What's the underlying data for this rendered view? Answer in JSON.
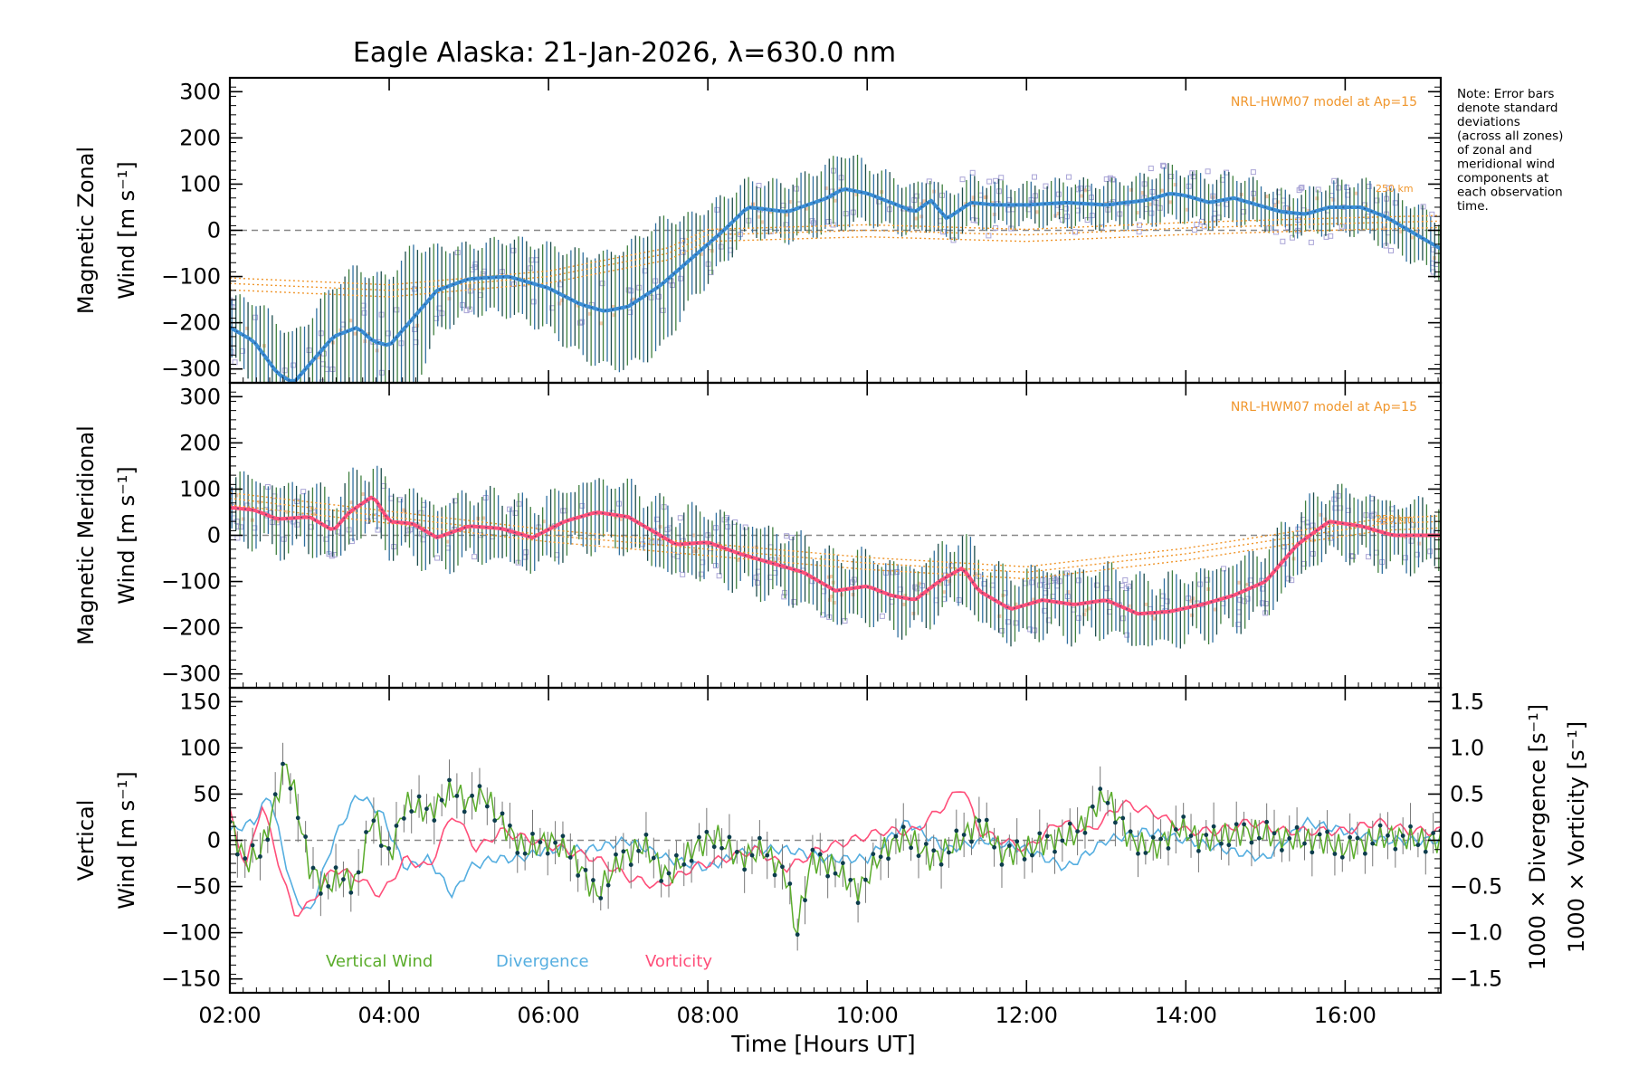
{
  "title": "Eagle Alaska: 21-Jan-2026, λ=630.0 nm",
  "xlabel": "Time [Hours UT]",
  "note": [
    "Note: Error bars",
    "denote standard",
    "deviations",
    "(across all zones)",
    "of zonal and",
    "meridional wind",
    "components at",
    "each observation",
    "time."
  ],
  "model_label": "NRL-HWM07 model at Ap=15",
  "model_altitude_label": "250 km",
  "colors": {
    "zonal": "#3b8ed6",
    "meridional": "#ff4f7a",
    "vertical": "#5aac2b",
    "divergence": "#55aee0",
    "vorticity": "#ff4f7a",
    "model": "#f0962c",
    "scatter": "#a9a4d6",
    "errorbar": "#1a3a3a"
  },
  "chart_data": [
    {
      "type": "line",
      "panel": "zonal",
      "ylabel_line1": "Magnetic Zonal",
      "ylabel_line2": "Wind [m s",
      "ylabel_sup": "-1",
      "ylabel_end": "]",
      "xlim": [
        2.0,
        17.2
      ],
      "ylim": [
        -330,
        330
      ],
      "yticks": [
        -300,
        -200,
        -100,
        0,
        100,
        200,
        300
      ],
      "xticks": [
        2,
        4,
        6,
        8,
        10,
        12,
        14,
        16
      ],
      "xticklabels": [
        "02:00",
        "04:00",
        "06:00",
        "08:00",
        "10:00",
        "12:00",
        "14:00",
        "16:00"
      ],
      "series": [
        {
          "name": "Zonal wind",
          "x": [
            2.0,
            2.3,
            2.6,
            2.8,
            3.0,
            3.3,
            3.6,
            3.8,
            4.0,
            4.3,
            4.6,
            5.0,
            5.5,
            6.0,
            6.4,
            6.7,
            7.0,
            7.4,
            7.8,
            8.2,
            8.5,
            9.0,
            9.5,
            9.7,
            10.0,
            10.3,
            10.6,
            10.8,
            11.0,
            11.3,
            11.6,
            12.0,
            12.5,
            13.0,
            13.5,
            13.8,
            14.0,
            14.3,
            14.6,
            14.9,
            15.2,
            15.5,
            15.8,
            16.2,
            16.5,
            16.8,
            17.2
          ],
          "y": [
            -210,
            -240,
            -310,
            -330,
            -290,
            -230,
            -210,
            -240,
            -250,
            -190,
            -130,
            -105,
            -100,
            -125,
            -160,
            -175,
            -165,
            -120,
            -60,
            0,
            50,
            40,
            70,
            90,
            80,
            60,
            40,
            65,
            25,
            60,
            55,
            55,
            60,
            55,
            65,
            80,
            75,
            60,
            70,
            55,
            40,
            35,
            50,
            50,
            30,
            0,
            -40
          ],
          "error": [
            60,
            90,
            110,
            100,
            100,
            110,
            130,
            140,
            150,
            155,
            90,
            70,
            80,
            90,
            110,
            120,
            130,
            140,
            90,
            70,
            55,
            60,
            70,
            80,
            60,
            55,
            50,
            55,
            50,
            50,
            45,
            40,
            45,
            45,
            50,
            55,
            50,
            50,
            50,
            45,
            40,
            45,
            50,
            55,
            60,
            60,
            60
          ]
        },
        {
          "name": "NRL-HWM07 model",
          "x": [
            2.0,
            4.0,
            6.0,
            7.5,
            8.0,
            10.0,
            12.0,
            14.0,
            16.0,
            17.2
          ],
          "y": [
            -115,
            -130,
            -100,
            -50,
            -10,
            0,
            -10,
            5,
            15,
            20
          ]
        }
      ]
    },
    {
      "type": "line",
      "panel": "meridional",
      "ylabel_line1": "Magnetic Meridional",
      "ylabel_line2": "Wind [m s",
      "ylabel_sup": "-1",
      "ylabel_end": "]",
      "xlim": [
        2.0,
        17.2
      ],
      "ylim": [
        -330,
        330
      ],
      "yticks": [
        -300,
        -200,
        -100,
        0,
        100,
        200,
        300
      ],
      "series": [
        {
          "name": "Meridional wind",
          "x": [
            2.0,
            2.3,
            2.6,
            3.0,
            3.3,
            3.5,
            3.8,
            4.0,
            4.3,
            4.6,
            5.0,
            5.4,
            5.8,
            6.2,
            6.6,
            7.0,
            7.3,
            7.6,
            8.0,
            8.4,
            8.8,
            9.2,
            9.6,
            10.0,
            10.3,
            10.6,
            10.9,
            11.2,
            11.4,
            11.8,
            12.2,
            12.6,
            13.0,
            13.4,
            13.8,
            14.2,
            14.6,
            15.0,
            15.4,
            15.8,
            16.2,
            16.6,
            17.2
          ],
          "y": [
            60,
            55,
            35,
            40,
            10,
            50,
            85,
            30,
            25,
            -5,
            20,
            15,
            -5,
            30,
            50,
            40,
            10,
            -20,
            -15,
            -40,
            -60,
            -80,
            -120,
            -110,
            -130,
            -140,
            -100,
            -70,
            -120,
            -160,
            -140,
            -150,
            -140,
            -170,
            -165,
            -150,
            -130,
            -100,
            -20,
            30,
            20,
            0,
            0
          ]
        },
        {
          "name": "NRL-HWM07 model",
          "x": [
            2.0,
            4.0,
            6.0,
            8.0,
            10.0,
            12.0,
            14.0,
            15.5,
            16.5,
            17.2
          ],
          "y": [
            80,
            40,
            0,
            -30,
            -60,
            -80,
            -40,
            0,
            25,
            30
          ]
        }
      ]
    },
    {
      "type": "line",
      "panel": "vertical",
      "ylabel_line1": "Vertical",
      "ylabel_line2": "Wind [m s",
      "ylabel_sup": "-1",
      "ylabel_end": "]",
      "y2label": "1000 × Divergence [s",
      "y3label": "1000 × Vorticity [s",
      "xlim": [
        2.0,
        17.2
      ],
      "ylim": [
        -165,
        165
      ],
      "yticks": [
        -150,
        -100,
        -50,
        0,
        50,
        100,
        150
      ],
      "y2lim": [
        -1.65,
        1.65
      ],
      "y2ticks": [
        -1.5,
        -1.0,
        -0.5,
        0.0,
        0.5,
        1.0,
        1.5
      ],
      "y2ticklabels": [
        "−1.5",
        "−1.0",
        "−0.5",
        "0.0",
        "0.5",
        "1.0",
        "1.5"
      ],
      "legend": [
        "Vertical Wind",
        "Divergence",
        "Vorticity"
      ],
      "series": [
        {
          "name": "Vertical Wind",
          "x": [
            2.0,
            2.2,
            2.4,
            2.6,
            2.7,
            2.8,
            3.0,
            3.2,
            3.4,
            3.6,
            3.8,
            4.0,
            4.2,
            4.5,
            4.8,
            5.0,
            5.2,
            5.4,
            5.7,
            6.0,
            6.3,
            6.6,
            6.9,
            7.2,
            7.5,
            7.8,
            8.1,
            8.4,
            8.7,
            9.0,
            9.1,
            9.3,
            9.6,
            9.9,
            10.2,
            10.5,
            10.8,
            11.1,
            11.4,
            11.7,
            12.0,
            12.3,
            12.6,
            12.8,
            13.0,
            13.3,
            13.6,
            13.9,
            14.2,
            14.5,
            14.8,
            15.1,
            15.4,
            15.7,
            16.0,
            16.3,
            16.6,
            16.9,
            17.2
          ],
          "y": [
            20,
            -25,
            -10,
            50,
            85,
            55,
            -30,
            -50,
            -40,
            -45,
            30,
            -20,
            40,
            30,
            55,
            40,
            50,
            20,
            -10,
            0,
            -15,
            -60,
            -20,
            -5,
            -40,
            -10,
            5,
            -20,
            -10,
            -40,
            -105,
            -20,
            -30,
            -55,
            -10,
            5,
            -20,
            -5,
            20,
            -15,
            -10,
            0,
            5,
            30,
            50,
            0,
            -10,
            15,
            0,
            5,
            10,
            5,
            0,
            0,
            -10,
            0,
            5,
            0,
            0
          ]
        },
        {
          "name": "Divergence",
          "x": [
            2.0,
            2.3,
            2.5,
            2.8,
            3.0,
            3.3,
            3.6,
            3.9,
            4.2,
            4.5,
            4.8,
            5.0,
            5.3,
            5.6,
            6.0,
            6.5,
            7.0,
            7.5,
            8.0,
            8.5,
            9.0,
            9.5,
            10.0,
            10.5,
            11.0,
            11.5,
            12.0,
            12.5,
            13.0,
            13.5,
            14.0,
            14.5,
            15.0,
            15.5,
            16.0,
            16.5,
            17.2
          ],
          "y": [
            0.1,
            0.2,
            0.5,
            -0.6,
            -0.8,
            0.0,
            0.5,
            0.3,
            -0.3,
            -0.2,
            -0.6,
            -0.3,
            -0.2,
            -0.2,
            -0.1,
            -0.1,
            0.0,
            -0.2,
            -0.3,
            -0.1,
            -0.1,
            -0.2,
            -0.2,
            0.2,
            -0.1,
            0.0,
            -0.1,
            -0.3,
            0.0,
            0.1,
            0.0,
            -0.1,
            -0.2,
            0.2,
            0.1,
            0.0,
            0.0
          ]
        },
        {
          "name": "Vorticity",
          "x": [
            2.0,
            2.2,
            2.4,
            2.6,
            2.8,
            3.0,
            3.3,
            3.6,
            3.9,
            4.2,
            4.5,
            4.8,
            5.1,
            5.4,
            5.8,
            6.2,
            6.6,
            7.0,
            7.4,
            7.8,
            8.2,
            8.6,
            9.0,
            9.4,
            9.8,
            10.2,
            10.6,
            11.0,
            11.2,
            11.4,
            11.7,
            12.0,
            12.4,
            12.8,
            13.2,
            13.6,
            14.0,
            14.4,
            14.8,
            15.2,
            15.6,
            16.0,
            16.4,
            16.8,
            17.2
          ],
          "y": [
            0.3,
            -0.3,
            0.4,
            -0.2,
            -0.8,
            -0.7,
            -0.3,
            -0.4,
            -0.6,
            -0.2,
            -0.3,
            0.3,
            -0.1,
            0.1,
            0.0,
            -0.1,
            -0.2,
            -0.4,
            -0.5,
            -0.3,
            -0.2,
            -0.1,
            -0.3,
            -0.1,
            0.0,
            0.1,
            0.1,
            0.4,
            0.6,
            0.1,
            0.0,
            -0.1,
            0.2,
            0.1,
            0.4,
            0.3,
            0.1,
            0.1,
            0.2,
            0.1,
            0.1,
            0.1,
            0.2,
            0.1,
            0.1
          ]
        }
      ]
    }
  ]
}
